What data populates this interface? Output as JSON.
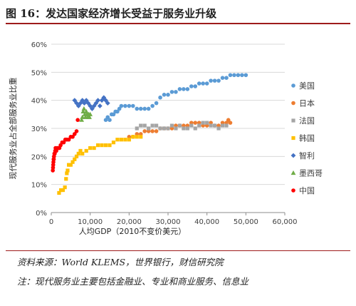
{
  "header": {
    "title": "图 16：发达国家经济增长受益于服务业升级"
  },
  "footer": {
    "source": "资料来源：World KLEMS，世界银行，财信研究院",
    "note": "注：现代服务业主要包括金融业、专业和商业服务、信息业"
  },
  "chart_data": {
    "type": "scatter",
    "xlabel": "人均GDP（2010不变价美元）",
    "ylabel": "现代服务业占全部服务业比重",
    "xlim": [
      0,
      60000
    ],
    "ylim": [
      0,
      0.6
    ],
    "x_ticks": [
      "0",
      "10,000",
      "20,000",
      "30,000",
      "40,000",
      "50,000",
      "60,000"
    ],
    "y_ticks": [
      "0%",
      "10%",
      "20%",
      "30%",
      "40%",
      "50%",
      "60%"
    ],
    "grid": true,
    "legend_position": "right",
    "series": [
      {
        "name": "美国",
        "color": "#5b9bd5",
        "marker": "circle",
        "points": [
          [
            14000,
            0.33
          ],
          [
            14500,
            0.34
          ],
          [
            15000,
            0.33
          ],
          [
            15500,
            0.35
          ],
          [
            16000,
            0.35
          ],
          [
            16500,
            0.36
          ],
          [
            17000,
            0.36
          ],
          [
            17500,
            0.37
          ],
          [
            18000,
            0.38
          ],
          [
            19000,
            0.38
          ],
          [
            20000,
            0.38
          ],
          [
            21000,
            0.38
          ],
          [
            22000,
            0.37
          ],
          [
            23000,
            0.37
          ],
          [
            24000,
            0.37
          ],
          [
            25000,
            0.37
          ],
          [
            26000,
            0.38
          ],
          [
            27000,
            0.39
          ],
          [
            28000,
            0.41
          ],
          [
            29000,
            0.42
          ],
          [
            30000,
            0.42
          ],
          [
            31000,
            0.43
          ],
          [
            32000,
            0.43
          ],
          [
            33000,
            0.44
          ],
          [
            34000,
            0.44
          ],
          [
            35000,
            0.44
          ],
          [
            36000,
            0.45
          ],
          [
            37000,
            0.45
          ],
          [
            38000,
            0.46
          ],
          [
            39000,
            0.46
          ],
          [
            40000,
            0.46
          ],
          [
            41000,
            0.47
          ],
          [
            42000,
            0.47
          ],
          [
            43000,
            0.47
          ],
          [
            44000,
            0.48
          ],
          [
            45000,
            0.48
          ],
          [
            46000,
            0.49
          ],
          [
            47000,
            0.49
          ],
          [
            48000,
            0.49
          ],
          [
            49000,
            0.49
          ],
          [
            50000,
            0.49
          ]
        ]
      },
      {
        "name": "日本",
        "color": "#ed7d31",
        "marker": "circle",
        "points": [
          [
            20000,
            0.27
          ],
          [
            21000,
            0.27
          ],
          [
            22000,
            0.28
          ],
          [
            23000,
            0.28
          ],
          [
            24000,
            0.29
          ],
          [
            25000,
            0.29
          ],
          [
            26000,
            0.29
          ],
          [
            27000,
            0.29
          ],
          [
            28000,
            0.3
          ],
          [
            29000,
            0.3
          ],
          [
            30000,
            0.3
          ],
          [
            31000,
            0.3
          ],
          [
            32000,
            0.31
          ],
          [
            33000,
            0.31
          ],
          [
            34000,
            0.31
          ],
          [
            35000,
            0.31
          ],
          [
            36000,
            0.32
          ],
          [
            37000,
            0.32
          ],
          [
            38000,
            0.32
          ],
          [
            39000,
            0.31
          ],
          [
            40000,
            0.31
          ],
          [
            41000,
            0.32
          ],
          [
            42000,
            0.31
          ],
          [
            43000,
            0.31
          ],
          [
            44000,
            0.32
          ],
          [
            45000,
            0.32
          ],
          [
            45500,
            0.33
          ],
          [
            46000,
            0.32
          ]
        ]
      },
      {
        "name": "法国",
        "color": "#a5a5a5",
        "marker": "square",
        "points": [
          [
            22000,
            0.3
          ],
          [
            23000,
            0.31
          ],
          [
            24000,
            0.31
          ],
          [
            25000,
            0.3
          ],
          [
            26000,
            0.31
          ],
          [
            27000,
            0.31
          ],
          [
            28000,
            0.3
          ],
          [
            29000,
            0.3
          ],
          [
            30000,
            0.3
          ],
          [
            31000,
            0.31
          ],
          [
            32000,
            0.3
          ],
          [
            33000,
            0.31
          ],
          [
            34000,
            0.3
          ],
          [
            35000,
            0.3
          ],
          [
            36000,
            0.31
          ],
          [
            37000,
            0.3
          ],
          [
            38000,
            0.31
          ],
          [
            39000,
            0.32
          ],
          [
            40000,
            0.32
          ],
          [
            41000,
            0.31
          ],
          [
            42000,
            0.31
          ],
          [
            43000,
            0.3
          ],
          [
            44000,
            0.31
          ],
          [
            45000,
            0.31
          ]
        ]
      },
      {
        "name": "韩国",
        "color": "#ffc000",
        "marker": "square",
        "points": [
          [
            2000,
            0.07
          ],
          [
            2500,
            0.08
          ],
          [
            3000,
            0.08
          ],
          [
            3500,
            0.09
          ],
          [
            3800,
            0.12
          ],
          [
            4000,
            0.14
          ],
          [
            4200,
            0.15
          ],
          [
            4500,
            0.17
          ],
          [
            5000,
            0.17
          ],
          [
            5500,
            0.18
          ],
          [
            6000,
            0.19
          ],
          [
            6500,
            0.2
          ],
          [
            7000,
            0.21
          ],
          [
            7500,
            0.22
          ],
          [
            8000,
            0.21
          ],
          [
            9000,
            0.22
          ],
          [
            10000,
            0.23
          ],
          [
            11000,
            0.23
          ],
          [
            12000,
            0.24
          ],
          [
            13000,
            0.24
          ],
          [
            14000,
            0.24
          ],
          [
            15000,
            0.24
          ],
          [
            16000,
            0.25
          ],
          [
            17000,
            0.26
          ],
          [
            18000,
            0.26
          ],
          [
            19000,
            0.26
          ],
          [
            20000,
            0.26
          ],
          [
            21000,
            0.27
          ],
          [
            22000,
            0.27
          ],
          [
            23000,
            0.27
          ]
        ]
      },
      {
        "name": "智利",
        "color": "#4472c4",
        "marker": "diamond",
        "points": [
          [
            6000,
            0.4
          ],
          [
            6500,
            0.39
          ],
          [
            7000,
            0.38
          ],
          [
            7500,
            0.39
          ],
          [
            8000,
            0.4
          ],
          [
            8500,
            0.39
          ],
          [
            9000,
            0.4
          ],
          [
            9500,
            0.39
          ],
          [
            10000,
            0.38
          ],
          [
            10500,
            0.37
          ],
          [
            11000,
            0.38
          ],
          [
            11500,
            0.39
          ],
          [
            12000,
            0.4
          ],
          [
            12500,
            0.38
          ],
          [
            13000,
            0.4
          ],
          [
            13500,
            0.41
          ],
          [
            14000,
            0.4
          ],
          [
            14500,
            0.39
          ]
        ]
      },
      {
        "name": "墨西哥",
        "color": "#70ad47",
        "marker": "triangle",
        "points": [
          [
            7800,
            0.33
          ],
          [
            8000,
            0.34
          ],
          [
            8200,
            0.36
          ],
          [
            8400,
            0.37
          ],
          [
            8600,
            0.35
          ],
          [
            8800,
            0.34
          ],
          [
            9000,
            0.36
          ],
          [
            9200,
            0.35
          ],
          [
            9400,
            0.34
          ],
          [
            9600,
            0.35
          ],
          [
            9800,
            0.34
          ],
          [
            10000,
            0.35
          ]
        ]
      },
      {
        "name": "中国",
        "color": "#ff0000",
        "marker": "circle",
        "points": [
          [
            400,
            0.15
          ],
          [
            450,
            0.16
          ],
          [
            500,
            0.17
          ],
          [
            550,
            0.18
          ],
          [
            600,
            0.19
          ],
          [
            650,
            0.19
          ],
          [
            700,
            0.2
          ],
          [
            800,
            0.21
          ],
          [
            900,
            0.21
          ],
          [
            1000,
            0.22
          ],
          [
            1100,
            0.23
          ],
          [
            1300,
            0.22
          ],
          [
            1500,
            0.23
          ],
          [
            1800,
            0.23
          ],
          [
            2100,
            0.23
          ],
          [
            2400,
            0.24
          ],
          [
            2800,
            0.25
          ],
          [
            3200,
            0.25
          ],
          [
            3600,
            0.26
          ],
          [
            4000,
            0.26
          ],
          [
            4500,
            0.26
          ],
          [
            5000,
            0.27
          ],
          [
            5500,
            0.27
          ],
          [
            6000,
            0.28
          ],
          [
            6500,
            0.29
          ],
          [
            6800,
            0.33
          ]
        ]
      }
    ]
  }
}
